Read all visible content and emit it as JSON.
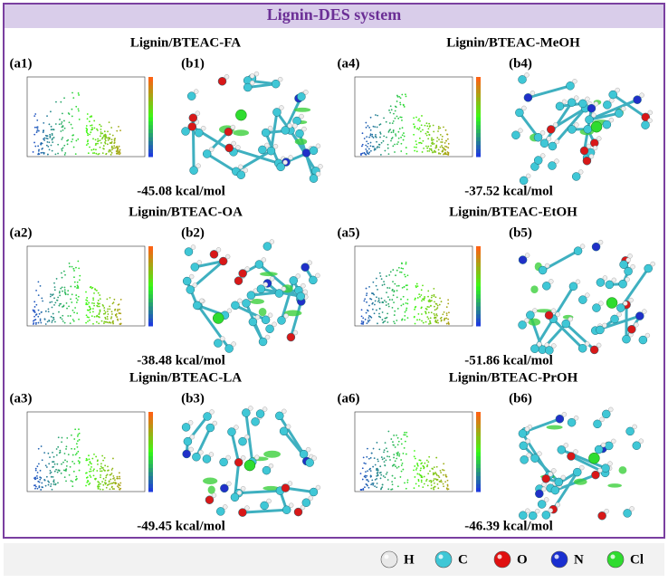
{
  "title": "Lignin-DES system",
  "panels": [
    {
      "title": "Lignin/BTEAC-FA",
      "plot_label": "(a1)",
      "model_label": "(b1)",
      "energy": "-45.08 kcal/mol"
    },
    {
      "title": "Lignin/BTEAC-MeOH",
      "plot_label": "(a4)",
      "model_label": "(b4)",
      "energy": "-37.52 kcal/mol"
    },
    {
      "title": "Lignin/BTEAC-OA",
      "plot_label": "(a2)",
      "model_label": "(b2)",
      "energy": "-38.48 kcal/mol"
    },
    {
      "title": "Lignin/BTEAC-EtOH",
      "plot_label": "(a5)",
      "model_label": "(b5)",
      "energy": "-51.86 kcal/mol"
    },
    {
      "title": "Lignin/BTEAC-LA",
      "plot_label": "(a3)",
      "model_label": "(b3)",
      "energy": "-49.45 kcal/mol"
    },
    {
      "title": "Lignin/BTEAC-PrOH",
      "plot_label": "(a6)",
      "model_label": "(b6)",
      "energy": "-46.39 kcal/mol"
    }
  ],
  "legend": [
    {
      "label": "H",
      "color": "#e8e8e8"
    },
    {
      "label": "C",
      "color": "#3fc7d6"
    },
    {
      "label": "O",
      "color": "#e01010"
    },
    {
      "label": "N",
      "color": "#1a2fd0"
    },
    {
      "label": "Cl",
      "color": "#2fdc2f"
    }
  ]
}
